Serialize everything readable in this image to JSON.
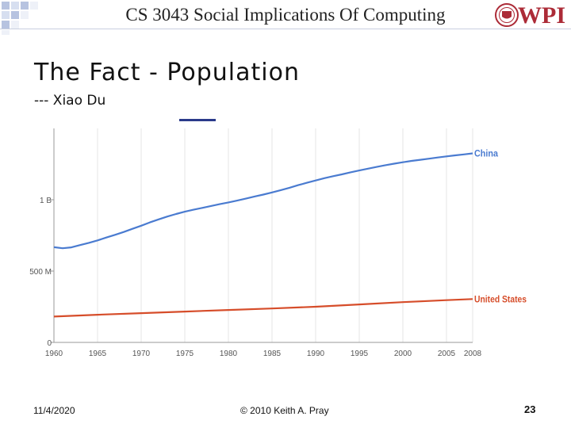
{
  "header": {
    "course_title": "CS 3043 Social Implications Of Computing",
    "logo_text": "WPI"
  },
  "slide": {
    "title": "The Fact - Population",
    "subtitle": "--- Xiao Du"
  },
  "footer": {
    "date": "11/4/2020",
    "copyright": "© 2010 Keith A. Pray",
    "page_number": "23"
  },
  "chart_data": {
    "type": "line",
    "title": "",
    "xlabel": "",
    "ylabel": "",
    "xlim": [
      1960,
      2008
    ],
    "ylim": [
      0,
      1500
    ],
    "x_ticks": [
      "1960",
      "1965",
      "1970",
      "1975",
      "1980",
      "1985",
      "1990",
      "1995",
      "2000",
      "2005",
      "2008"
    ],
    "y_ticks": [
      {
        "label": "0",
        "value": 0
      },
      {
        "label": "500 M",
        "value": 500
      },
      {
        "label": "1 B",
        "value": 1000
      }
    ],
    "units": "millions",
    "series": [
      {
        "name": "China",
        "color": "#4a7bd0",
        "x": [
          1960,
          1961,
          1962,
          1963,
          1964,
          1965,
          1966,
          1967,
          1968,
          1969,
          1970,
          1971,
          1972,
          1973,
          1974,
          1975,
          1976,
          1977,
          1978,
          1979,
          1980,
          1981,
          1982,
          1983,
          1984,
          1985,
          1986,
          1987,
          1988,
          1989,
          1990,
          1991,
          1992,
          1993,
          1994,
          1995,
          1996,
          1997,
          1998,
          1999,
          2000,
          2001,
          2002,
          2003,
          2004,
          2005,
          2006,
          2007,
          2008
        ],
        "values": [
          667,
          660,
          666,
          682,
          698,
          715,
          735,
          754,
          774,
          796,
          818,
          841,
          862,
          882,
          900,
          916,
          930,
          943,
          956,
          969,
          981,
          994,
          1008,
          1023,
          1036,
          1051,
          1067,
          1084,
          1102,
          1119,
          1135,
          1151,
          1165,
          1178,
          1192,
          1205,
          1218,
          1230,
          1242,
          1253,
          1263,
          1272,
          1280,
          1288,
          1296,
          1304,
          1311,
          1318,
          1325
        ]
      },
      {
        "name": "United States",
        "color": "#d64d2a",
        "x": [
          1960,
          1965,
          1970,
          1975,
          1980,
          1985,
          1990,
          1995,
          2000,
          2005,
          2008
        ],
        "values": [
          181,
          194,
          205,
          216,
          227,
          238,
          250,
          266,
          282,
          296,
          304
        ]
      }
    ]
  }
}
